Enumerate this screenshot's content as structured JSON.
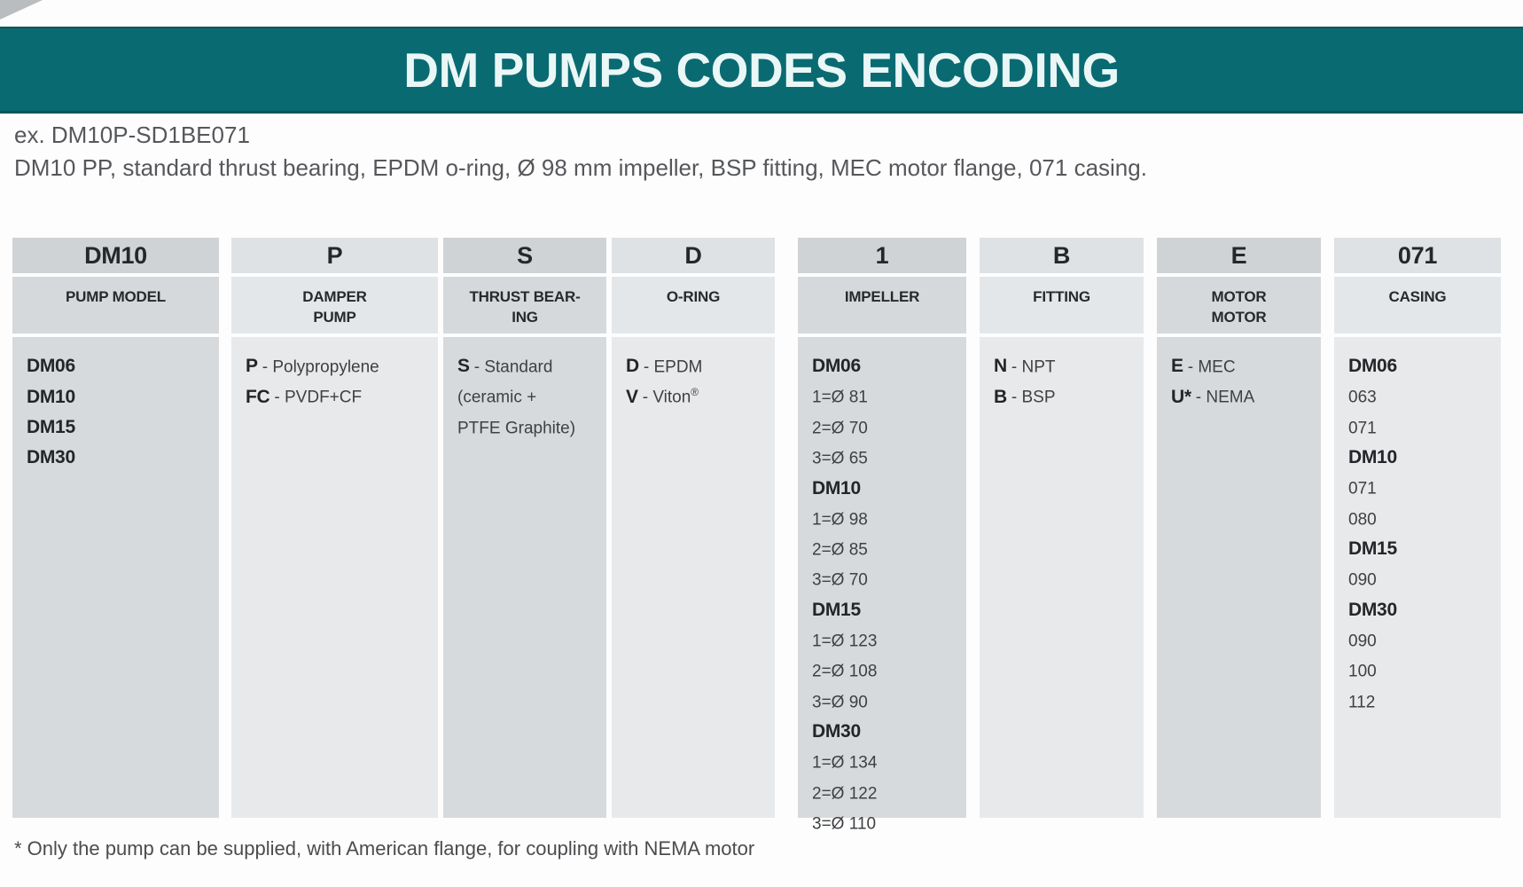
{
  "page": {
    "title": "DM PUMPS CODES ENCODING",
    "example_line1": "ex. DM10P-SD1BE071",
    "example_line2": "DM10 PP, standard thrust bearing, EPDM o-ring, Ø 98 mm impeller, BSP fitting, MEC motor flange, 071 casing.",
    "footnote": "* Only the pump can be supplied, with American flange, for coupling with NEMA motor",
    "accent_color": "#0a6a72"
  },
  "table": {
    "columns": [
      {
        "code": "DM10",
        "label_lines": [
          "PUMP MODEL"
        ],
        "lines": [
          {
            "b": "DM06",
            "t": ""
          },
          {
            "b": "DM10",
            "t": ""
          },
          {
            "b": "DM15",
            "t": ""
          },
          {
            "b": "DM30",
            "t": ""
          }
        ]
      },
      {
        "code": "P",
        "label_lines": [
          "DAMPER",
          "PUMP"
        ],
        "lines": [
          {
            "b": "P",
            "t": "- Polypropylene"
          },
          {
            "b": "FC",
            "t": "- PVDF+CF"
          }
        ]
      },
      {
        "code": "S",
        "label_lines": [
          "THRUST BEAR-",
          "ING"
        ],
        "lines": [
          {
            "b": "S",
            "t": "- Standard"
          },
          {
            "b": "",
            "t": "(ceramic +"
          },
          {
            "b": "",
            "t": "PTFE Graphite)"
          }
        ]
      },
      {
        "code": "D",
        "label_lines": [
          "O-RING"
        ],
        "lines": [
          {
            "b": "D",
            "t": "- EPDM"
          },
          {
            "b": "V",
            "t": "- Viton",
            "sup": "®"
          }
        ]
      },
      {
        "code": "1",
        "label_lines": [
          "IMPELLER"
        ],
        "lines": [
          {
            "b": "DM06",
            "t": ""
          },
          {
            "b": "",
            "t": "1=Ø 81"
          },
          {
            "b": "",
            "t": "2=Ø 70"
          },
          {
            "b": "",
            "t": "3=Ø 65"
          },
          {
            "b": "DM10",
            "t": ""
          },
          {
            "b": "",
            "t": "1=Ø 98"
          },
          {
            "b": "",
            "t": "2=Ø 85"
          },
          {
            "b": "",
            "t": "3=Ø 70"
          },
          {
            "b": "DM15",
            "t": ""
          },
          {
            "b": "",
            "t": "1=Ø 123"
          },
          {
            "b": "",
            "t": "2=Ø 108"
          },
          {
            "b": "",
            "t": "3=Ø 90"
          },
          {
            "b": "DM30",
            "t": ""
          },
          {
            "b": "",
            "t": "1=Ø 134"
          },
          {
            "b": "",
            "t": "2=Ø 122"
          },
          {
            "b": "",
            "t": "3=Ø 110"
          }
        ]
      },
      {
        "code": "B",
        "label_lines": [
          "FITTING"
        ],
        "lines": [
          {
            "b": "N",
            "t": "- NPT"
          },
          {
            "b": "B",
            "t": "- BSP"
          }
        ]
      },
      {
        "code": "E",
        "label_lines": [
          "MOTOR",
          "MOTOR"
        ],
        "lines": [
          {
            "b": "E",
            "t": "- MEC"
          },
          {
            "b": "U*",
            "t": "- NEMA"
          }
        ]
      },
      {
        "code": "071",
        "label_lines": [
          "CASING"
        ],
        "lines": [
          {
            "b": "DM06",
            "t": ""
          },
          {
            "b": "",
            "t": "063"
          },
          {
            "b": "",
            "t": "071"
          },
          {
            "b": "DM10",
            "t": ""
          },
          {
            "b": "",
            "t": "071"
          },
          {
            "b": "",
            "t": "080"
          },
          {
            "b": "DM15",
            "t": ""
          },
          {
            "b": "",
            "t": "090"
          },
          {
            "b": "DM30",
            "t": ""
          },
          {
            "b": "",
            "t": "090"
          },
          {
            "b": "",
            "t": "100"
          },
          {
            "b": "",
            "t": "112"
          }
        ]
      }
    ]
  }
}
